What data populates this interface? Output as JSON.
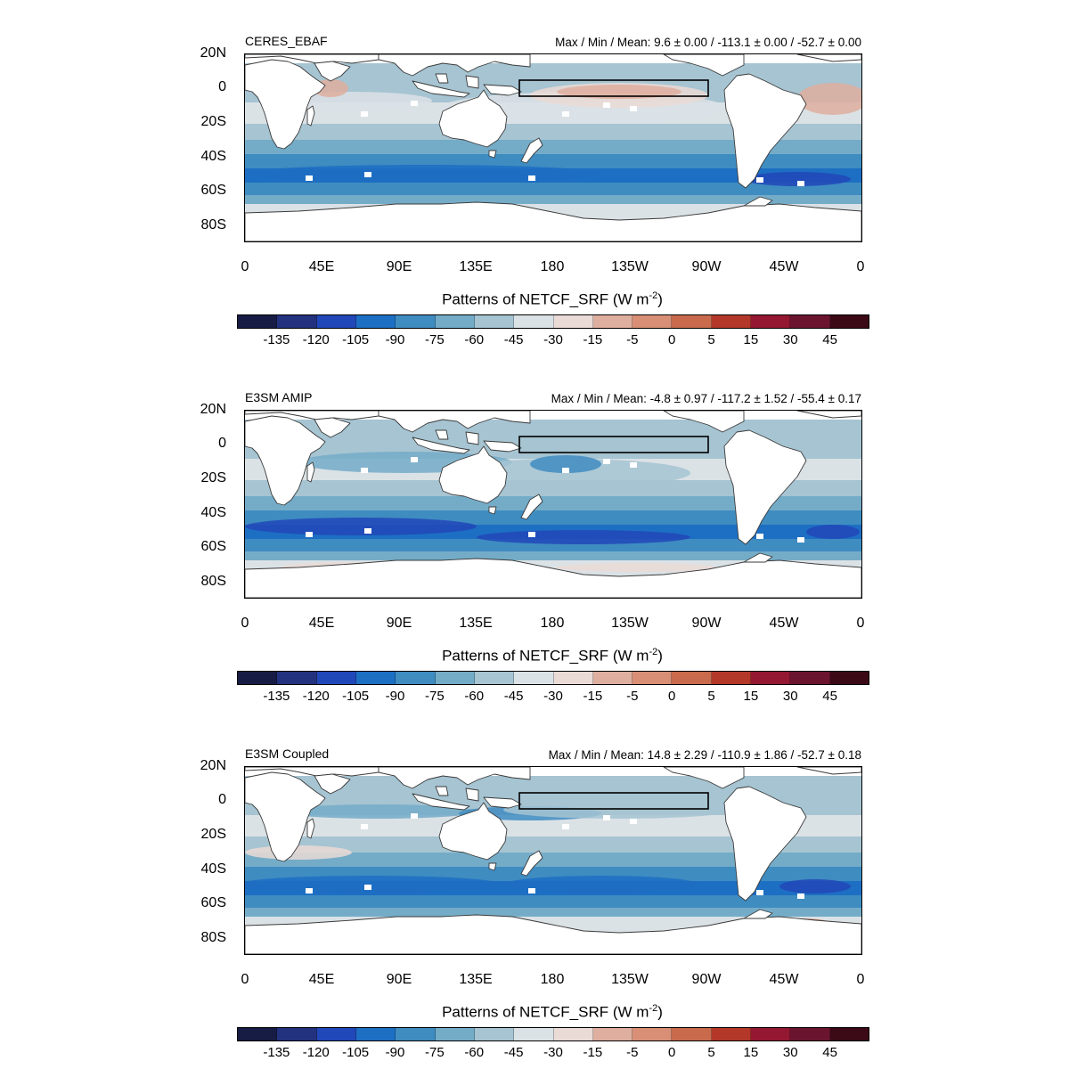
{
  "colorbar": {
    "title_prefix": "Patterns of NETCF_SRF (W m",
    "title_exp": "-2",
    "title_suffix": ")",
    "levels": [
      "-135",
      "-120",
      "-105",
      "-90",
      "-75",
      "-60",
      "-45",
      "-30",
      "-15",
      "-5",
      "0",
      "5",
      "15",
      "30",
      "45"
    ],
    "colors": [
      "#171c45",
      "#23327f",
      "#2148b9",
      "#1d6fc3",
      "#3f8cc1",
      "#74acc8",
      "#a6c4d2",
      "#dbe2e6",
      "#eadbd6",
      "#deae9f",
      "#d88f76",
      "#c96a4c",
      "#b3382a",
      "#941832",
      "#6b1430",
      "#3b0a16"
    ]
  },
  "axes": {
    "y_labels": [
      "20N",
      "0",
      "20S",
      "40S",
      "60S",
      "80S"
    ],
    "x_labels": [
      "0",
      "45E",
      "90E",
      "135E",
      "180",
      "135W",
      "90W",
      "45W",
      "0"
    ]
  },
  "panels": [
    {
      "title": "CERES_EBAF",
      "stats": "Max / Min / Mean:  9.6 ± 0.00 / -113.1 ± 0.00 / -52.7 ± 0.00",
      "variant": "obs"
    },
    {
      "title": "E3SM AMIP",
      "stats": "Max / Min / Mean:  -4.8 ± 0.97 / -117.2 ± 1.52 / -55.4 ± 0.17",
      "variant": "amip"
    },
    {
      "title": "E3SM Coupled",
      "stats": "Max / Min / Mean:  14.8 ± 2.29 / -110.9 ± 1.86 / -52.7 ± 0.18",
      "variant": "coupled"
    }
  ]
}
